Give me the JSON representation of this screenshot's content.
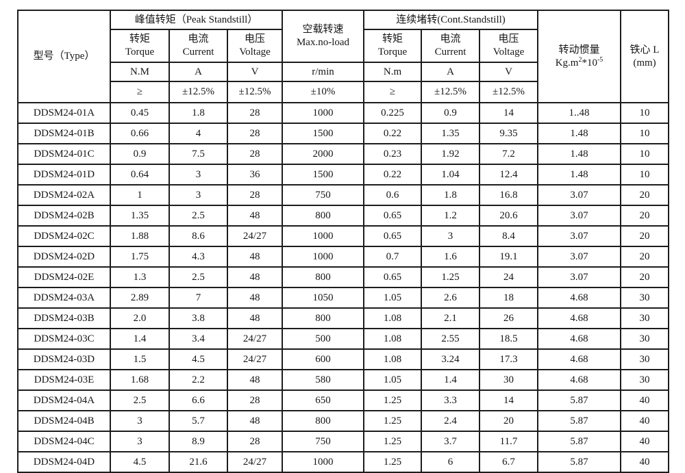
{
  "colors": {
    "background": "#ffffff",
    "border": "#1c1c1c",
    "text": "#161616"
  },
  "table": {
    "header": {
      "type_label": "型号（Type）",
      "groups": {
        "peak": "峰值转矩（Peak Standstill）",
        "noload_cn": "空载转速",
        "noload_en": "Max.no-load",
        "cont": "连续堵转(Cont.Standstill)"
      },
      "sub": {
        "torque_cn": "转矩",
        "torque_en": "Torque",
        "current_cn": "电流",
        "current_en": "Current",
        "voltage_cn": "电压",
        "voltage_en": "Voltage"
      },
      "units": {
        "peak_torque": "N.M",
        "peak_current": "A",
        "peak_voltage": "V",
        "speed": "r/min",
        "cont_torque": "N.m",
        "cont_current": "A",
        "cont_voltage": "V"
      },
      "tolerances": {
        "peak_torque": "≥",
        "peak_current": "±12.5%",
        "peak_voltage": "±12.5%",
        "speed": "±10%",
        "cont_torque": "≥",
        "cont_current": "±12.5%",
        "cont_voltage": "±12.5%"
      },
      "inertia": {
        "cn": "转动惯量",
        "base": "Kg.m",
        "sup1": "2",
        "mid": "*10",
        "sup2": "-5"
      },
      "core": {
        "cn": "铁心 L",
        "unit": "(mm)"
      }
    },
    "rows": [
      {
        "model": "DDSM24-01A",
        "peak_torque": "0.45",
        "peak_current": "1.8",
        "peak_voltage": "28",
        "noload_speed": "1000",
        "cont_torque": "0.225",
        "cont_current": "0.9",
        "cont_voltage": "14",
        "inertia": "1..48",
        "core_l": "10"
      },
      {
        "model": "DDSM24-01B",
        "peak_torque": "0.66",
        "peak_current": "4",
        "peak_voltage": "28",
        "noload_speed": "1500",
        "cont_torque": "0.22",
        "cont_current": "1.35",
        "cont_voltage": "9.35",
        "inertia": "1.48",
        "core_l": "10"
      },
      {
        "model": "DDSM24-01C",
        "peak_torque": "0.9",
        "peak_current": "7.5",
        "peak_voltage": "28",
        "noload_speed": "2000",
        "cont_torque": "0.23",
        "cont_current": "1.92",
        "cont_voltage": "7.2",
        "inertia": "1.48",
        "core_l": "10"
      },
      {
        "model": "DDSM24-01D",
        "peak_torque": "0.64",
        "peak_current": "3",
        "peak_voltage": "36",
        "noload_speed": "1500",
        "cont_torque": "0.22",
        "cont_current": "1.04",
        "cont_voltage": "12.4",
        "inertia": "1.48",
        "core_l": "10"
      },
      {
        "model": "DDSM24-02A",
        "peak_torque": "1",
        "peak_current": "3",
        "peak_voltage": "28",
        "noload_speed": "750",
        "cont_torque": "0.6",
        "cont_current": "1.8",
        "cont_voltage": "16.8",
        "inertia": "3.07",
        "core_l": "20"
      },
      {
        "model": "DDSM24-02B",
        "peak_torque": "1.35",
        "peak_current": "2.5",
        "peak_voltage": "48",
        "noload_speed": "800",
        "cont_torque": "0.65",
        "cont_current": "1.2",
        "cont_voltage": "20.6",
        "inertia": "3.07",
        "core_l": "20"
      },
      {
        "model": "DDSM24-02C",
        "peak_torque": "1.88",
        "peak_current": "8.6",
        "peak_voltage": "24/27",
        "noload_speed": "1000",
        "cont_torque": "0.65",
        "cont_current": "3",
        "cont_voltage": "8.4",
        "inertia": "3.07",
        "core_l": "20"
      },
      {
        "model": "DDSM24-02D",
        "peak_torque": "1.75",
        "peak_current": "4.3",
        "peak_voltage": "48",
        "noload_speed": "1000",
        "cont_torque": "0.7",
        "cont_current": "1.6",
        "cont_voltage": "19.1",
        "inertia": "3.07",
        "core_l": "20"
      },
      {
        "model": "DDSM24-02E",
        "peak_torque": "1.3",
        "peak_current": "2.5",
        "peak_voltage": "48",
        "noload_speed": "800",
        "cont_torque": "0.65",
        "cont_current": "1.25",
        "cont_voltage": "24",
        "inertia": "3.07",
        "core_l": "20"
      },
      {
        "model": "DDSM24-03A",
        "peak_torque": "2.89",
        "peak_current": "7",
        "peak_voltage": "48",
        "noload_speed": "1050",
        "cont_torque": "1.05",
        "cont_current": "2.6",
        "cont_voltage": "18",
        "inertia": "4.68",
        "core_l": "30"
      },
      {
        "model": "DDSM24-03B",
        "peak_torque": "2.0",
        "peak_current": "3.8",
        "peak_voltage": "48",
        "noload_speed": "800",
        "cont_torque": "1.08",
        "cont_current": "2.1",
        "cont_voltage": "26",
        "inertia": "4.68",
        "core_l": "30"
      },
      {
        "model": "DDSM24-03C",
        "peak_torque": "1.4",
        "peak_current": "3.4",
        "peak_voltage": "24/27",
        "noload_speed": "500",
        "cont_torque": "1.08",
        "cont_current": "2.55",
        "cont_voltage": "18.5",
        "inertia": "4.68",
        "core_l": "30"
      },
      {
        "model": "DDSM24-03D",
        "peak_torque": "1.5",
        "peak_current": "4.5",
        "peak_voltage": "24/27",
        "noload_speed": "600",
        "cont_torque": "1.08",
        "cont_current": "3.24",
        "cont_voltage": "17.3",
        "inertia": "4.68",
        "core_l": "30"
      },
      {
        "model": "DDSM24-03E",
        "peak_torque": "1.68",
        "peak_current": "2.2",
        "peak_voltage": "48",
        "noload_speed": "580",
        "cont_torque": "1.05",
        "cont_current": "1.4",
        "cont_voltage": "30",
        "inertia": "4.68",
        "core_l": "30"
      },
      {
        "model": "DDSM24-04A",
        "peak_torque": "2.5",
        "peak_current": "6.6",
        "peak_voltage": "28",
        "noload_speed": "650",
        "cont_torque": "1.25",
        "cont_current": "3.3",
        "cont_voltage": "14",
        "inertia": "5.87",
        "core_l": "40"
      },
      {
        "model": "DDSM24-04B",
        "peak_torque": "3",
        "peak_current": "5.7",
        "peak_voltage": "48",
        "noload_speed": "800",
        "cont_torque": "1.25",
        "cont_current": "2.4",
        "cont_voltage": "20",
        "inertia": "5.87",
        "core_l": "40"
      },
      {
        "model": "DDSM24-04C",
        "peak_torque": "3",
        "peak_current": "8.9",
        "peak_voltage": "28",
        "noload_speed": "750",
        "cont_torque": "1.25",
        "cont_current": "3.7",
        "cont_voltage": "11.7",
        "inertia": "5.87",
        "core_l": "40"
      },
      {
        "model": "DDSM24-04D",
        "peak_torque": "4.5",
        "peak_current": "21.6",
        "peak_voltage": "24/27",
        "noload_speed": "1000",
        "cont_torque": "1.25",
        "cont_current": "6",
        "cont_voltage": "6.7",
        "inertia": "5.87",
        "core_l": "40"
      }
    ]
  }
}
